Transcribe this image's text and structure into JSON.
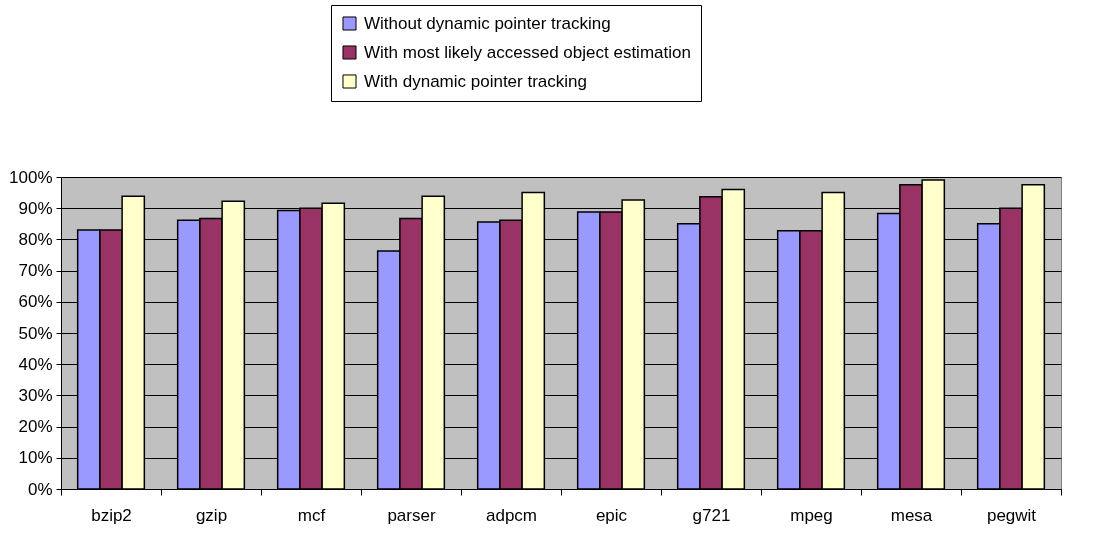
{
  "chart_data": {
    "type": "bar",
    "categories": [
      "bzip2",
      "gzip",
      "mcf",
      "parser",
      "adpcm",
      "epic",
      "g721",
      "mpeg",
      "mesa",
      "pegwit"
    ],
    "series": [
      {
        "name": "Without dynamic pointer tracking",
        "color": "#9999ff",
        "values": [
          83,
          86.1,
          89.3,
          76.3,
          85.6,
          88.8,
          85,
          82.8,
          88.3,
          85
        ]
      },
      {
        "name": "With most likely accessed object estimation",
        "color": "#993366",
        "values": [
          83,
          86.7,
          90,
          86.7,
          86.1,
          88.8,
          93.7,
          82.8,
          97.5,
          90
        ]
      },
      {
        "name": "With dynamic pointer tracking",
        "color": "#ffffcc",
        "values": [
          93.8,
          92.2,
          91.6,
          93.8,
          95,
          92.6,
          96,
          95,
          99,
          97.5
        ]
      }
    ],
    "ylim": [
      0,
      100
    ],
    "yticks": [
      {
        "value": 0,
        "label": "0%"
      },
      {
        "value": 10,
        "label": "10%"
      },
      {
        "value": 20,
        "label": "20%"
      },
      {
        "value": 30,
        "label": "30%"
      },
      {
        "value": 40,
        "label": "40%"
      },
      {
        "value": 50,
        "label": "50%"
      },
      {
        "value": 60,
        "label": "60%"
      },
      {
        "value": 70,
        "label": "70%"
      },
      {
        "value": 80,
        "label": "80%"
      },
      {
        "value": 90,
        "label": "90%"
      },
      {
        "value": 100,
        "label": "100%"
      }
    ],
    "grid": "y",
    "legend": "top"
  }
}
